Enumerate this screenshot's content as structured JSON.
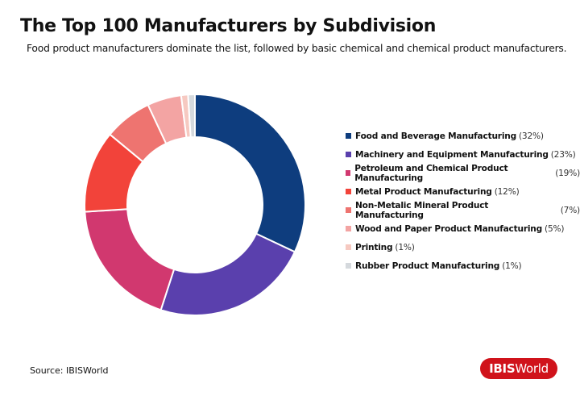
{
  "title": "The Top 100 Manufacturers by Subdivision",
  "subtitle": "Food product manufacturers dominate the list, followed by basic chemical and chemical product manufacturers.",
  "source": "Source: IBISWorld",
  "logo": "IBISWorld",
  "chart_data": {
    "type": "pie",
    "variant": "donut",
    "legend_position": "right",
    "categories": [
      "Food and Beverage Manufacturing",
      "Machinery and Equipment Manufacturing",
      "Petroleum and Chemical Product Manufacturing",
      "Metal Product Manufacturing",
      "Non-Metalic Mineral Product Manufacturing",
      "Wood and Paper Product Manufacturing",
      "Printing",
      "Rubber Product Manufacturing"
    ],
    "values": [
      32,
      23,
      19,
      12,
      7,
      5,
      1,
      1
    ],
    "labels": [
      "(32%)",
      "(23%)",
      "(19%)",
      "(12%)",
      "(7%)",
      "(5%)",
      "(1%)",
      "(1%)"
    ],
    "colors": [
      "#0e3d7e",
      "#5a40ad",
      "#d1386f",
      "#f2433a",
      "#ee7470",
      "#f3a4a3",
      "#f6c9c1",
      "#d5d9dd"
    ]
  }
}
